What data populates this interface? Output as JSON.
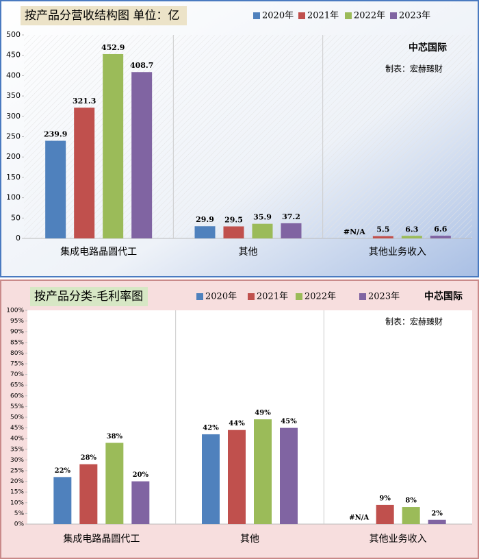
{
  "chart_data": [
    {
      "type": "bar",
      "title": "按产品分营收结构图 单位：亿",
      "categories": [
        "集成电路晶圆代工",
        "其他",
        "其他业务收入"
      ],
      "series": [
        {
          "name": "2020年",
          "color": "#4f81bd",
          "values": [
            239.9,
            29.9,
            null
          ],
          "value_labels": [
            "239.9",
            "29.9",
            "#N/A"
          ]
        },
        {
          "name": "2021年",
          "color": "#c0504d",
          "values": [
            321.3,
            29.5,
            5.5
          ]
        },
        {
          "name": "2022年",
          "color": "#9bbb59",
          "values": [
            452.9,
            35.9,
            6.3
          ]
        },
        {
          "name": "2023年",
          "color": "#8064a2",
          "values": [
            408.7,
            37.2,
            6.6
          ]
        }
      ],
      "ylim": [
        0,
        500
      ],
      "yticks": [
        0,
        50,
        100,
        150,
        200,
        250,
        300,
        350,
        400,
        450,
        500
      ],
      "legend": "top",
      "annotations": [
        "中芯国际",
        "制表：宏赫臻财"
      ]
    },
    {
      "type": "bar",
      "title": "按产品分类-毛利率图",
      "categories": [
        "集成电路晶圆代工",
        "其他",
        "其他业务收入"
      ],
      "series": [
        {
          "name": "2020年",
          "color": "#4f81bd",
          "values": [
            22,
            42,
            null
          ],
          "value_labels": [
            "22%",
            "42%",
            "#N/A"
          ]
        },
        {
          "name": "2021年",
          "color": "#c0504d",
          "values": [
            28,
            44,
            9
          ],
          "value_labels": [
            "28%",
            "44%",
            "9%"
          ]
        },
        {
          "name": "2022年",
          "color": "#9bbb59",
          "values": [
            38,
            49,
            8
          ],
          "value_labels": [
            "38%",
            "49%",
            "8%"
          ]
        },
        {
          "name": "2023年",
          "color": "#8064a2",
          "values": [
            20,
            45,
            2
          ],
          "value_labels": [
            "20%",
            "45%",
            "2%"
          ]
        }
      ],
      "ylim": [
        0,
        100
      ],
      "yticks": [
        {
          "value": 0,
          "label": "0%"
        },
        {
          "value": 5,
          "label": "5%"
        },
        {
          "value": 10,
          "label": "10%"
        },
        {
          "value": 15,
          "label": "15%"
        },
        {
          "value": 20,
          "label": "20%"
        },
        {
          "value": 25,
          "label": "25%"
        },
        {
          "value": 30,
          "label": "30%"
        },
        {
          "value": 35,
          "label": "35%"
        },
        {
          "value": 40,
          "label": "40%"
        },
        {
          "value": 45,
          "label": "45%"
        },
        {
          "value": 50,
          "label": "50%"
        },
        {
          "value": 55,
          "label": "55%"
        },
        {
          "value": 60,
          "label": "60%"
        },
        {
          "value": 65,
          "label": "65%"
        },
        {
          "value": 70,
          "label": "70%"
        },
        {
          "value": 75,
          "label": "75%"
        },
        {
          "value": 80,
          "label": "80%"
        },
        {
          "value": 85,
          "label": "85%"
        },
        {
          "value": 90,
          "label": "90%"
        },
        {
          "value": 95,
          "label": "95%"
        },
        {
          "value": 100,
          "label": "100%"
        }
      ],
      "legend": "top",
      "annotations": [
        "中芯国际",
        "制表：宏赫臻财"
      ]
    }
  ]
}
